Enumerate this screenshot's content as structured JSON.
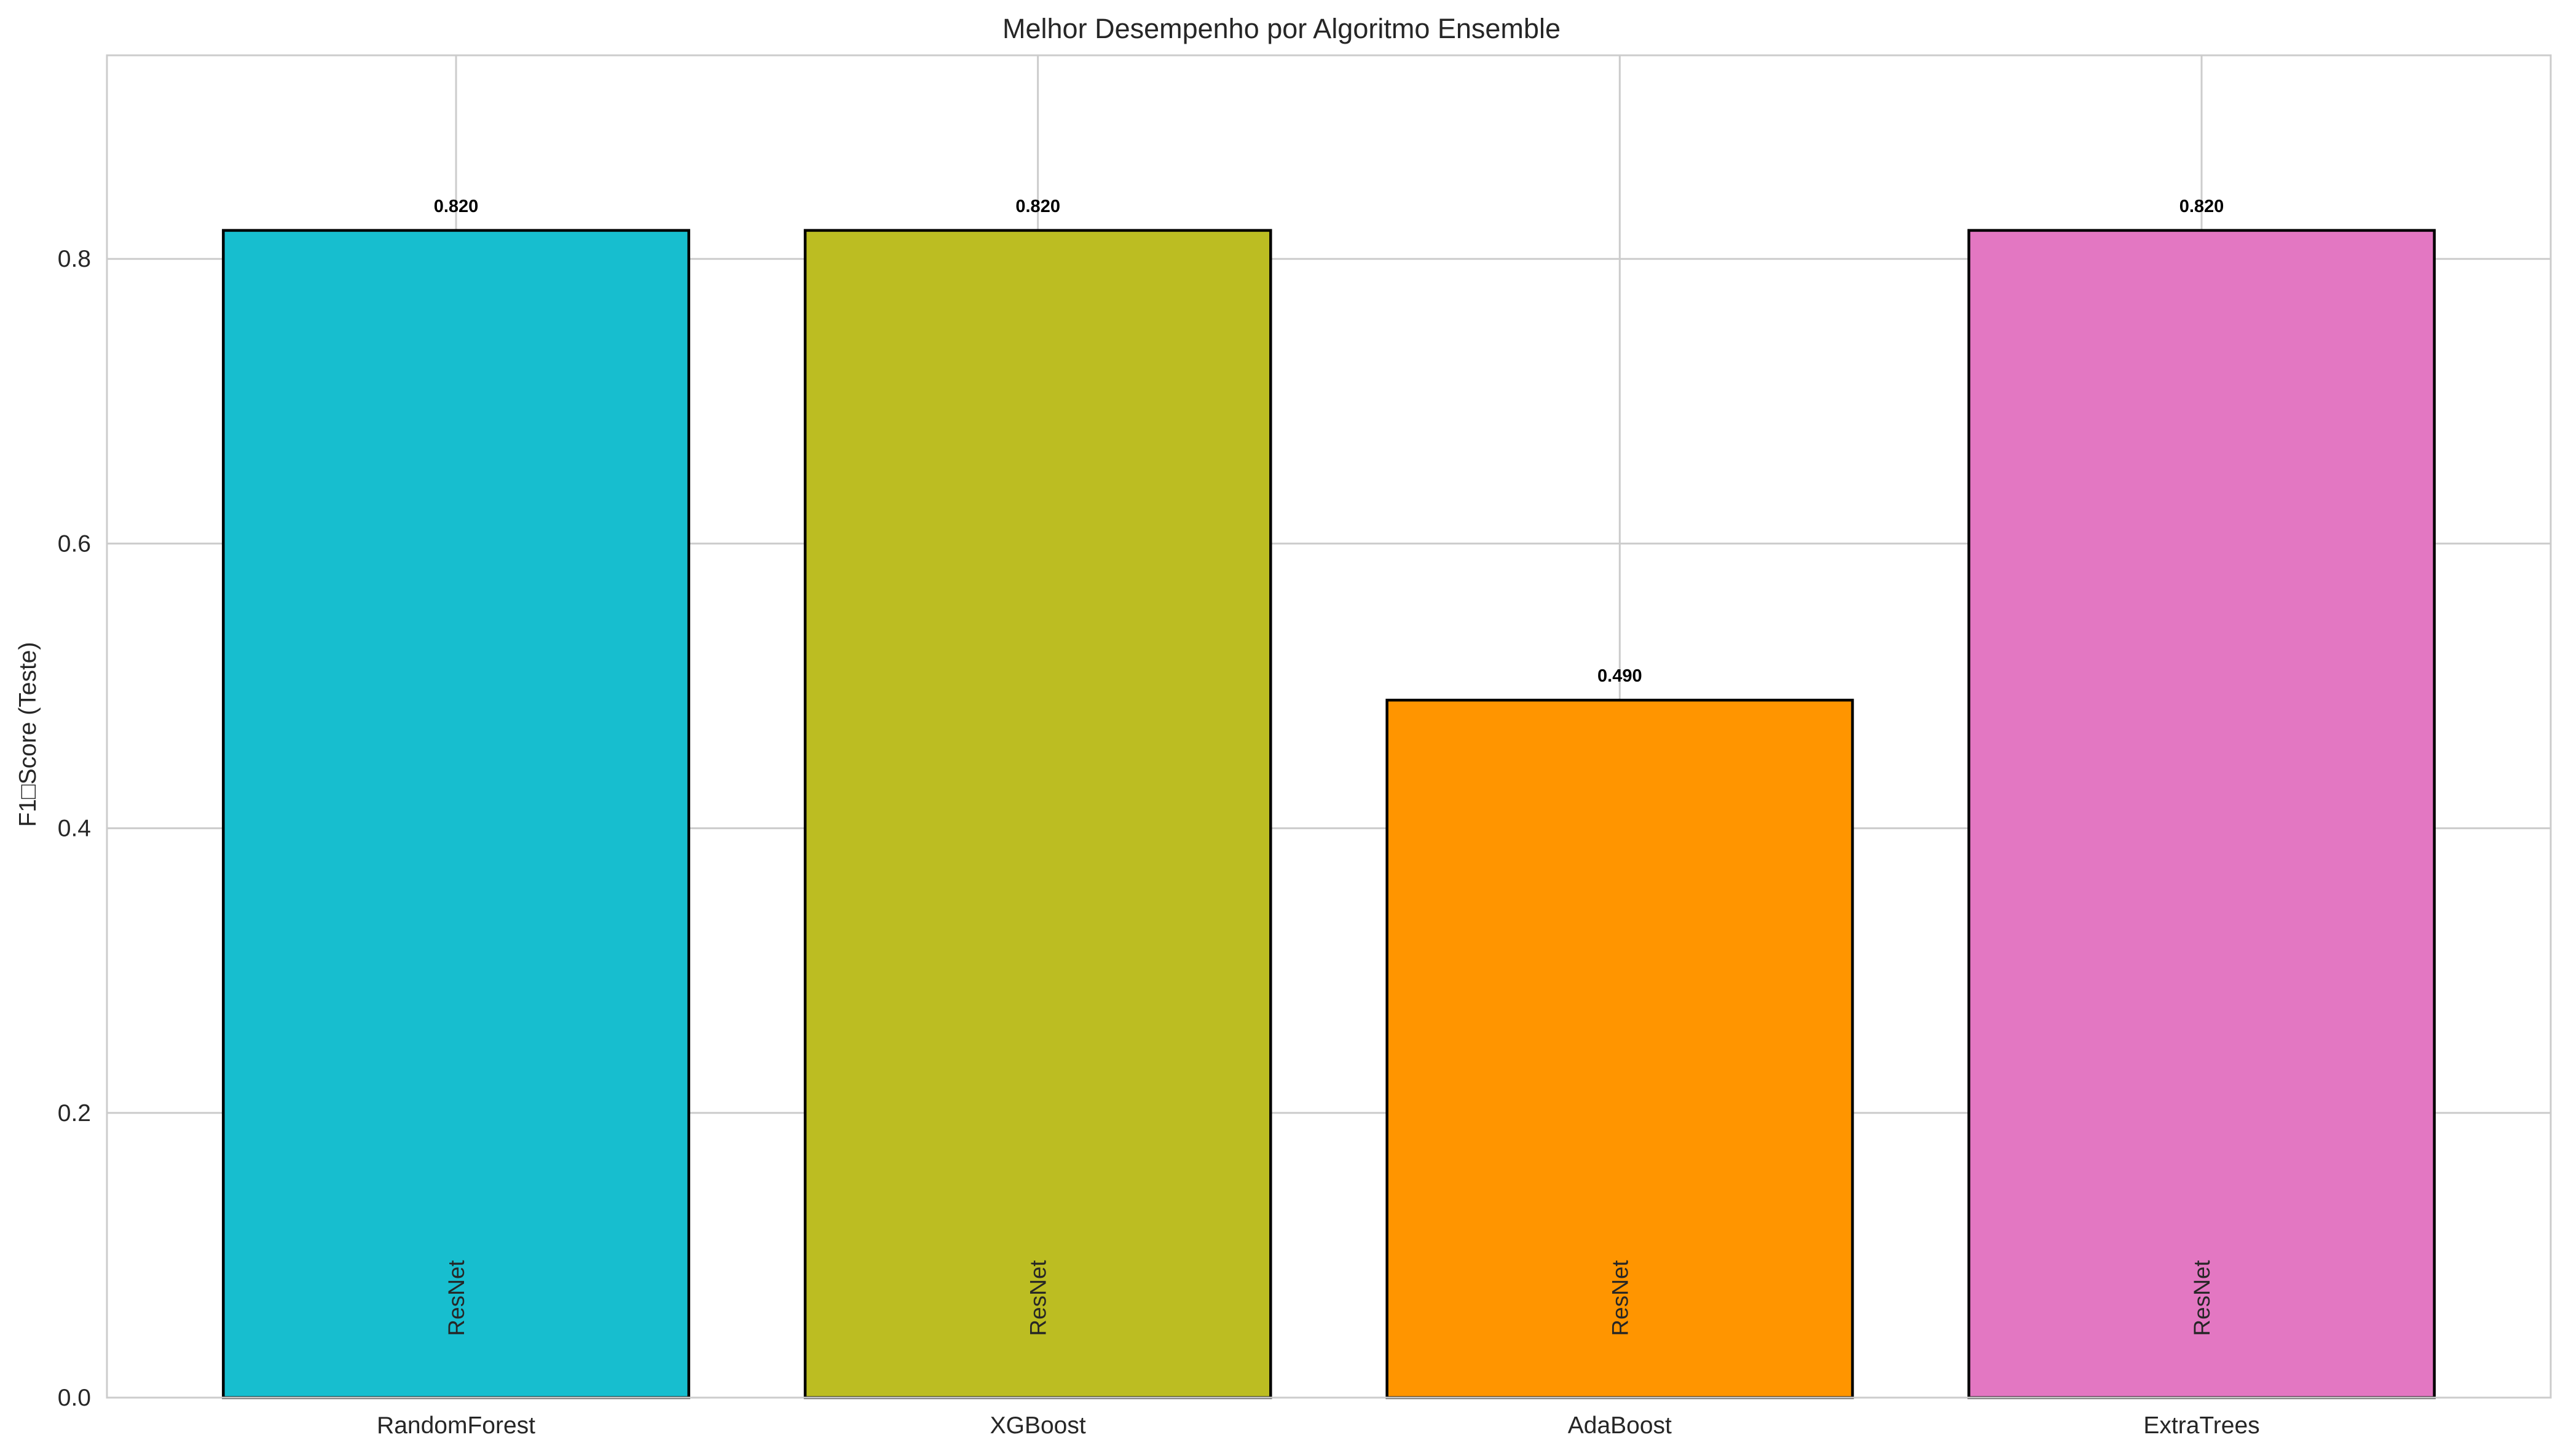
{
  "chart_data": {
    "type": "bar",
    "title": "Melhor Desempenho por Algoritmo Ensemble",
    "xlabel": "",
    "ylabel": "F1□Score (Teste)",
    "ylim": [
      0,
      0.943
    ],
    "yticks": [
      "0.0",
      "0.2",
      "0.4",
      "0.6",
      "0.8"
    ],
    "ytick_values": [
      0,
      0.2,
      0.4,
      0.6,
      0.8
    ],
    "grid": true,
    "categories": [
      "RandomForest",
      "XGBoost",
      "AdaBoost",
      "ExtraTrees"
    ],
    "values": [
      0.82,
      0.82,
      0.49,
      0.82
    ],
    "value_labels": [
      "0.820",
      "0.820",
      "0.490",
      "0.820"
    ],
    "bar_annotations": [
      "ResNet",
      "ResNet",
      "ResNet",
      "ResNet"
    ],
    "colors": [
      "#17becf",
      "#bcbd22",
      "#ff9500",
      "#e377c2"
    ],
    "edge_color": "#000000"
  }
}
